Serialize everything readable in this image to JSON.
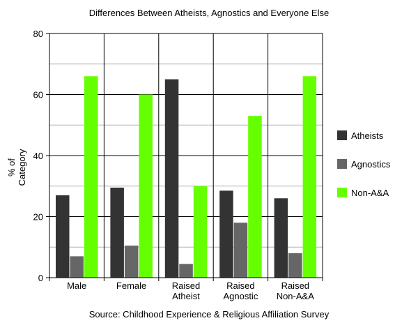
{
  "chart_data": {
    "type": "bar",
    "title": "Differences Between Atheists, Agnostics and Everyone Else",
    "ylabel_lines": [
      "% of",
      "Category"
    ],
    "source": "Source: Childhood Experience & Religious Affiliation Survey",
    "ylim": [
      0,
      80
    ],
    "yticks": [
      0,
      20,
      40,
      60,
      80
    ],
    "grid": true,
    "legend_placement": "right",
    "categories": [
      [
        "Male"
      ],
      [
        "Female"
      ],
      [
        "Raised",
        "Atheist"
      ],
      [
        "Raised",
        "Agnostic"
      ],
      [
        "Raised",
        "Non-A&A"
      ]
    ],
    "series": [
      {
        "name": "Atheists",
        "color": "#333333",
        "values": [
          27,
          29.5,
          65,
          28.5,
          26
        ]
      },
      {
        "name": "Agnostics",
        "color": "#666666",
        "values": [
          7,
          10.5,
          4.5,
          18,
          8
        ]
      },
      {
        "name": "Non-A&A",
        "color": "#66ff00",
        "values": [
          66,
          60,
          30,
          53,
          66
        ]
      }
    ]
  }
}
